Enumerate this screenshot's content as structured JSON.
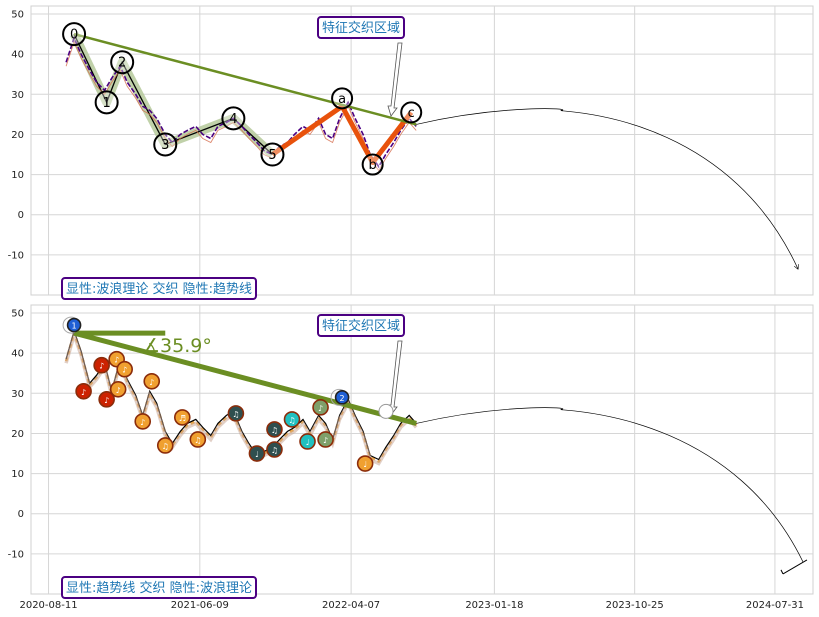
{
  "colors": {
    "price": "#4b0082",
    "trend": "#6b8e23",
    "abc": "#e8520c",
    "impulse_fill": "#b5c99a",
    "box_edge": "#4b0082",
    "box_text": "#1f77b4",
    "marker_orange": "#f0a030",
    "marker_red": "#cc2200",
    "marker_dark": "#2f4f4f",
    "marker_cyan": "#20c0c0",
    "marker_green": "#7fa06a"
  },
  "x_ticks": [
    "2020-08-11",
    "2021-06-09",
    "2022-04-07",
    "2023-01-18",
    "2023-10-25",
    "2024-07-31"
  ],
  "chart_data": [
    {
      "type": "line",
      "panel": "top",
      "ylim": [
        -20,
        52
      ],
      "y_ticks": [
        -10,
        0,
        10,
        20,
        30,
        40,
        50
      ],
      "grid": true,
      "annotations": [
        {
          "id": "box_top_feature",
          "text": "特征交织区域"
        },
        {
          "id": "box_top_mode",
          "text": "显性:波浪理论 交织 隐性:趋势线"
        }
      ],
      "wave_labels": [
        {
          "label": "0",
          "date": "2020-10-01",
          "value": 45
        },
        {
          "label": "1",
          "date": "2020-12-05",
          "value": 28
        },
        {
          "label": "2",
          "date": "2021-01-05",
          "value": 38
        },
        {
          "label": "3",
          "date": "2021-04-01",
          "value": 17.5
        },
        {
          "label": "4",
          "date": "2021-08-15",
          "value": 24
        },
        {
          "label": "5",
          "date": "2021-11-01",
          "value": 15
        },
        {
          "label": "a",
          "date": "2022-03-20",
          "value": 29
        },
        {
          "label": "b",
          "date": "2022-05-20",
          "value": 12.5
        },
        {
          "label": "c",
          "date": "2022-08-05",
          "value": 25.5
        }
      ],
      "trend_line": {
        "from": {
          "date": "2020-10-01",
          "value": 45
        },
        "to": {
          "date": "2022-08-15",
          "value": 22.5
        }
      },
      "projection": {
        "from": {
          "date": "2022-08-15",
          "value": 22.5
        },
        "peak": {
          "date": "2023-06-01",
          "value": 26
        },
        "to": {
          "date": "2024-09-15",
          "value": -13.5
        }
      },
      "series": [
        {
          "role": "price",
          "x": [
            "2020-09-15",
            "2020-10-01",
            "2020-10-15",
            "2020-11-01",
            "2020-11-15",
            "2020-12-01",
            "2020-12-15",
            "2021-01-01",
            "2021-01-15",
            "2021-02-01",
            "2021-02-15",
            "2021-03-01",
            "2021-03-15",
            "2021-04-01",
            "2021-04-15",
            "2021-05-01",
            "2021-05-15",
            "2021-06-01",
            "2021-06-15",
            "2021-07-01",
            "2021-07-15",
            "2021-08-01",
            "2021-08-15",
            "2021-09-01",
            "2021-09-15",
            "2021-10-01",
            "2021-10-15",
            "2021-11-01",
            "2021-11-15",
            "2021-12-01",
            "2021-12-15",
            "2022-01-01",
            "2022-01-15",
            "2022-02-01",
            "2022-02-15",
            "2022-03-01",
            "2022-03-15",
            "2022-04-01",
            "2022-04-15",
            "2022-05-01",
            "2022-05-15",
            "2022-06-01",
            "2022-06-15",
            "2022-07-01",
            "2022-07-15",
            "2022-08-01",
            "2022-08-15"
          ],
          "y": [
            38,
            44,
            40,
            36,
            33,
            31,
            34,
            37,
            33,
            30,
            27,
            26,
            24,
            20,
            18,
            20,
            21,
            22,
            20,
            19,
            22,
            23,
            24,
            22,
            20,
            18,
            16,
            15,
            17,
            18,
            20,
            22,
            21,
            24,
            20,
            19,
            24,
            28,
            24,
            20,
            15,
            12,
            15,
            18,
            21,
            24,
            22
          ]
        },
        {
          "role": "abc",
          "x": [
            "2021-11-01",
            "2022-03-20",
            "2022-05-20",
            "2022-08-05"
          ],
          "y": [
            15,
            27,
            13,
            25.5
          ]
        }
      ]
    },
    {
      "type": "line",
      "panel": "bottom",
      "ylim": [
        -20,
        52
      ],
      "y_ticks": [
        -10,
        0,
        10,
        20,
        30,
        40,
        50
      ],
      "grid": true,
      "angle_label": "∡35.9°",
      "annotations": [
        {
          "id": "box_bottom_feature",
          "text": "特征交织区域"
        },
        {
          "id": "box_bottom_mode",
          "text": "显性:趋势线 交织 隐性:波浪理论"
        }
      ],
      "trend_line": {
        "from": {
          "date": "2020-10-01",
          "value": 45
        },
        "to": {
          "date": "2022-08-15",
          "value": 22.5
        }
      },
      "horizontal_ref": {
        "from": {
          "date": "2020-10-01",
          "value": 45
        },
        "to": {
          "date": "2021-04-01",
          "value": 45
        }
      },
      "projection": {
        "from": {
          "date": "2022-08-15",
          "value": 22.5
        },
        "peak": {
          "date": "2023-06-01",
          "value": 26
        },
        "to": {
          "date": "2024-09-25",
          "value": -12
        }
      },
      "markers": [
        {
          "date": "2020-10-01",
          "value": 47,
          "color": "marker_dark",
          "label": "1"
        },
        {
          "date": "2020-10-20",
          "value": 30.5,
          "color": "marker_red",
          "label": "♪"
        },
        {
          "date": "2020-11-25",
          "value": 37,
          "color": "marker_red",
          "label": "♪"
        },
        {
          "date": "2020-12-05",
          "value": 28.5,
          "color": "marker_red",
          "label": "♪"
        },
        {
          "date": "2020-12-25",
          "value": 38.5,
          "color": "marker_orange",
          "label": "♪"
        },
        {
          "date": "2021-01-10",
          "value": 36,
          "color": "marker_orange",
          "label": "♪"
        },
        {
          "date": "2020-12-28",
          "value": 31,
          "color": "marker_orange",
          "label": "♪"
        },
        {
          "date": "2021-02-15",
          "value": 23,
          "color": "marker_orange",
          "label": "♪"
        },
        {
          "date": "2021-03-05",
          "value": 33,
          "color": "marker_orange",
          "label": "♪"
        },
        {
          "date": "2021-04-01",
          "value": 17,
          "color": "marker_orange",
          "label": "♫"
        },
        {
          "date": "2021-05-05",
          "value": 24,
          "color": "marker_orange",
          "label": "♬"
        },
        {
          "date": "2021-06-05",
          "value": 18.5,
          "color": "marker_orange",
          "label": "♫"
        },
        {
          "date": "2021-08-20",
          "value": 25,
          "color": "marker_dark",
          "label": "♫"
        },
        {
          "date": "2021-10-01",
          "value": 15,
          "color": "marker_dark",
          "label": "♩"
        },
        {
          "date": "2021-11-05",
          "value": 16,
          "color": "marker_dark",
          "label": "♫"
        },
        {
          "date": "2021-11-05",
          "value": 21,
          "color": "marker_dark",
          "label": "♫"
        },
        {
          "date": "2021-12-10",
          "value": 23.5,
          "color": "marker_cyan",
          "label": "♫"
        },
        {
          "date": "2022-01-10",
          "value": 18,
          "color": "marker_cyan",
          "label": "♩"
        },
        {
          "date": "2022-02-05",
          "value": 26.5,
          "color": "marker_green",
          "label": "♪"
        },
        {
          "date": "2022-02-15",
          "value": 18.5,
          "color": "marker_green",
          "label": "♪"
        },
        {
          "date": "2022-03-20",
          "value": 29,
          "color": "marker_dark",
          "label": "2"
        },
        {
          "date": "2022-05-05",
          "value": 12.5,
          "color": "marker_orange",
          "label": "♩"
        }
      ],
      "series": [
        {
          "role": "price",
          "x": [
            "2020-09-15",
            "2020-10-01",
            "2020-10-15",
            "2020-11-01",
            "2020-11-15",
            "2020-12-01",
            "2020-12-15",
            "2021-01-01",
            "2021-01-15",
            "2021-02-01",
            "2021-02-15",
            "2021-03-01",
            "2021-03-15",
            "2021-04-01",
            "2021-04-15",
            "2021-05-01",
            "2021-05-15",
            "2021-06-01",
            "2021-06-15",
            "2021-07-01",
            "2021-07-15",
            "2021-08-01",
            "2021-08-15",
            "2021-09-01",
            "2021-09-15",
            "2021-10-01",
            "2021-10-15",
            "2021-11-01",
            "2021-11-15",
            "2021-12-01",
            "2021-12-15",
            "2022-01-01",
            "2022-01-15",
            "2022-02-01",
            "2022-02-15",
            "2022-03-01",
            "2022-03-15",
            "2022-04-01",
            "2022-04-15",
            "2022-05-01",
            "2022-05-15",
            "2022-06-01",
            "2022-06-15",
            "2022-07-01",
            "2022-07-15",
            "2022-08-01",
            "2022-08-15"
          ],
          "y": [
            38,
            45,
            40,
            32,
            34,
            37,
            30,
            38,
            33,
            29,
            24,
            30,
            27,
            20,
            17,
            20,
            22,
            23,
            21,
            19,
            22,
            24,
            25,
            20,
            17,
            14,
            15,
            16,
            18,
            20,
            21,
            23,
            20,
            24,
            22,
            18,
            24,
            28,
            24,
            20,
            14,
            13,
            16,
            19,
            22,
            24,
            22
          ]
        }
      ]
    }
  ]
}
